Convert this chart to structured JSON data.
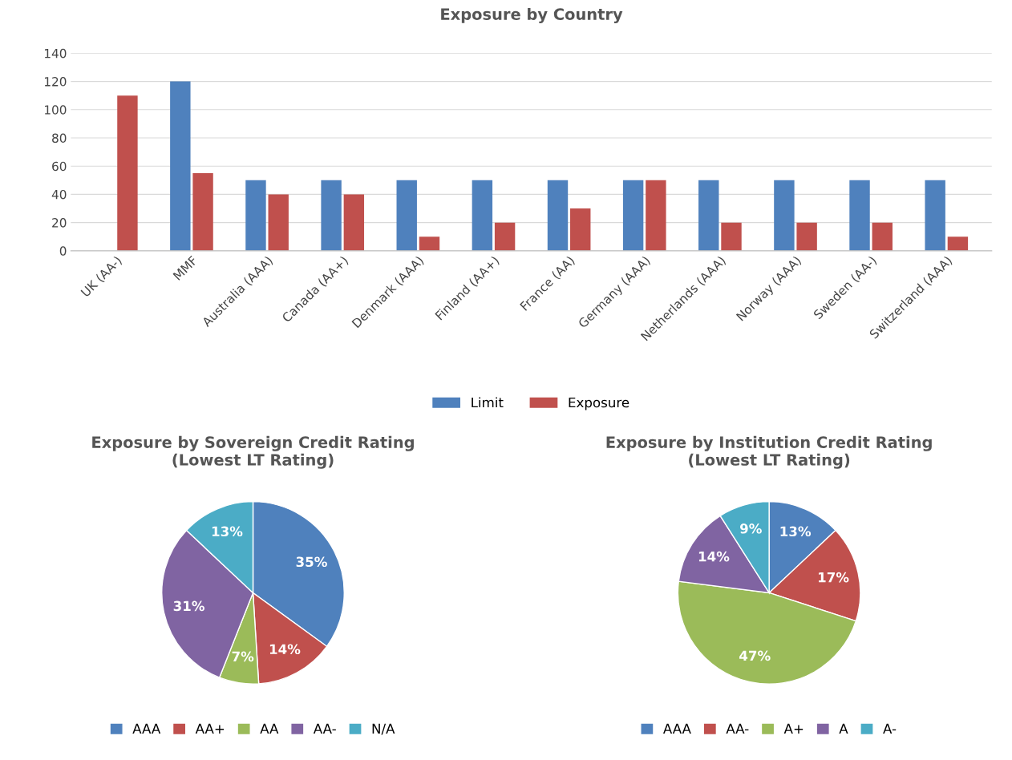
{
  "chart_data": [
    {
      "type": "bar",
      "title": "Exposure by Country",
      "categories": [
        "UK (AA-)",
        "MMF",
        "Australia (AAA)",
        "Canada (AA+)",
        "Denmark (AAA)",
        "Finland (AA+)",
        "France (AA)",
        "Germany (AAA)",
        "Netherlands (AAA)",
        "Norway (AAA)",
        "Sweden (AA-)",
        "Switzerland (AAA)"
      ],
      "series": [
        {
          "name": "Limit",
          "color": "#4f81bd",
          "values": [
            null,
            120,
            50,
            50,
            50,
            50,
            50,
            50,
            50,
            50,
            50,
            50
          ]
        },
        {
          "name": "Exposure",
          "color": "#c0504d",
          "values": [
            110,
            55,
            40,
            40,
            10,
            20,
            30,
            50,
            20,
            20,
            20,
            10
          ]
        }
      ],
      "ylim": [
        0,
        140
      ],
      "yticks": [
        0,
        20,
        40,
        60,
        80,
        100,
        120,
        140
      ],
      "grid": "y",
      "legend": "bottom"
    },
    {
      "type": "pie",
      "title": "Exposure by Sovereign Credit Rating\n(Lowest LT Rating)",
      "categories": [
        "AAA",
        "AA+",
        "AA",
        "AA-",
        "N/A"
      ],
      "values": [
        35,
        14,
        7,
        31,
        13
      ],
      "value_labels": [
        "35%",
        "14%",
        "7%",
        "31%",
        "13%"
      ],
      "colors": [
        "#4f81bd",
        "#c0504d",
        "#9bbb59",
        "#8064a2",
        "#4bacc6"
      ],
      "legend": "bottom"
    },
    {
      "type": "pie",
      "title": "Exposure by Institution Credit Rating\n(Lowest LT Rating)",
      "categories": [
        "AAA",
        "AA-",
        "A+",
        "A",
        "A-"
      ],
      "values": [
        13,
        17,
        47,
        14,
        9
      ],
      "value_labels": [
        "13%",
        "17%",
        "47%",
        "14%",
        "9%"
      ],
      "colors": [
        "#4f81bd",
        "#c0504d",
        "#9bbb59",
        "#8064a2",
        "#4bacc6"
      ],
      "legend": "bottom"
    }
  ]
}
